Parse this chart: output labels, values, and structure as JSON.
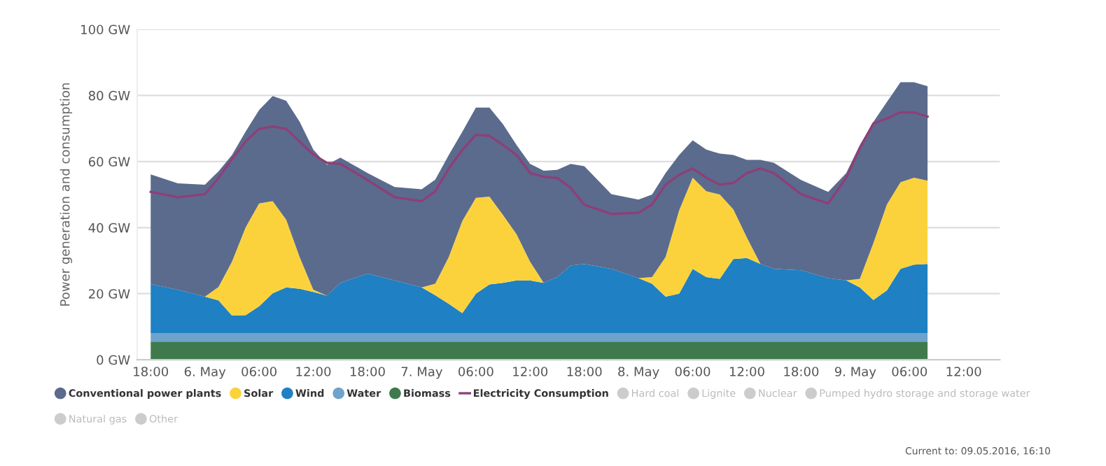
{
  "chart_data": {
    "type": "area",
    "stacked": true,
    "ylabel": "Power generation and consumption",
    "x": [
      "2016-05-05T18:00",
      "2016-05-05T21:00",
      "2016-05-06T00:00",
      "2016-05-06T01:30",
      "2016-05-06T03:00",
      "2016-05-06T04:30",
      "2016-05-06T06:00",
      "2016-05-06T07:30",
      "2016-05-06T09:00",
      "2016-05-06T10:30",
      "2016-05-06T12:00",
      "2016-05-06T13:30",
      "2016-05-06T15:00",
      "2016-05-06T18:00",
      "2016-05-06T21:00",
      "2016-05-07T00:00",
      "2016-05-07T01:30",
      "2016-05-07T03:00",
      "2016-05-07T04:30",
      "2016-05-07T06:00",
      "2016-05-07T07:30",
      "2016-05-07T09:00",
      "2016-05-07T10:30",
      "2016-05-07T12:00",
      "2016-05-07T13:30",
      "2016-05-07T15:00",
      "2016-05-07T16:30",
      "2016-05-07T18:00",
      "2016-05-07T21:00",
      "2016-05-08T00:00",
      "2016-05-08T01:30",
      "2016-05-08T03:00",
      "2016-05-08T04:30",
      "2016-05-08T06:00",
      "2016-05-08T07:30",
      "2016-05-08T09:00",
      "2016-05-08T10:30",
      "2016-05-08T12:00",
      "2016-05-08T13:30",
      "2016-05-08T15:00",
      "2016-05-08T18:00",
      "2016-05-08T21:00",
      "2016-05-08T23:00",
      "2016-05-09T00:30",
      "2016-05-09T02:00",
      "2016-05-09T03:30",
      "2016-05-09T05:00",
      "2016-05-09T06:30",
      "2016-05-09T08:00"
    ],
    "series": [
      {
        "name": "Biomass",
        "color": "#3f7a4c",
        "values": [
          5.5,
          5.5,
          5.5,
          5.5,
          5.5,
          5.5,
          5.5,
          5.5,
          5.5,
          5.5,
          5.5,
          5.5,
          5.5,
          5.5,
          5.5,
          5.5,
          5.5,
          5.5,
          5.5,
          5.5,
          5.5,
          5.5,
          5.5,
          5.5,
          5.5,
          5.5,
          5.5,
          5.5,
          5.5,
          5.5,
          5.5,
          5.5,
          5.5,
          5.5,
          5.5,
          5.5,
          5.5,
          5.5,
          5.5,
          5.5,
          5.5,
          5.5,
          5.5,
          5.5,
          5.5,
          5.5,
          5.5,
          5.5,
          5.5
        ]
      },
      {
        "name": "Water",
        "color": "#6fa3cc",
        "values": [
          2.5,
          2.5,
          2.5,
          2.5,
          2.5,
          2.5,
          2.5,
          2.5,
          2.5,
          2.5,
          2.5,
          2.5,
          2.5,
          2.5,
          2.5,
          2.5,
          2.5,
          2.5,
          2.5,
          2.5,
          2.5,
          2.5,
          2.5,
          2.5,
          2.5,
          2.5,
          2.5,
          2.5,
          2.5,
          2.5,
          2.5,
          2.5,
          2.5,
          2.5,
          2.5,
          2.5,
          2.5,
          2.5,
          2.5,
          2.5,
          2.5,
          2.5,
          2.5,
          2.5,
          2.5,
          2.5,
          2.5,
          2.5,
          2.5
        ]
      },
      {
        "name": "Wind",
        "color": "#1f80c3",
        "values": [
          14.9,
          13.2,
          11.1,
          10,
          5.4,
          5.5,
          8.2,
          12.1,
          13.9,
          13.5,
          12.5,
          11.4,
          15.3,
          18.1,
          16,
          13.9,
          11.5,
          8.9,
          6.1,
          12,
          14.8,
          15.3,
          16,
          16,
          15.3,
          17,
          20.5,
          21,
          19.5,
          16.7,
          15,
          11.1,
          12,
          19.5,
          17,
          16.5,
          22.5,
          22.8,
          21,
          19.5,
          19.1,
          16.7,
          16,
          13.9,
          10.1,
          13,
          19.5,
          20.8,
          21
        ]
      },
      {
        "name": "Solar",
        "color": "#fcd23c",
        "values": [
          0,
          0,
          0,
          4,
          16.3,
          26.5,
          31.1,
          27.9,
          20.5,
          9.5,
          0.7,
          0,
          0,
          0,
          0,
          0,
          3.5,
          14.2,
          27.9,
          29,
          26.6,
          20.5,
          14,
          5.7,
          0,
          0,
          0,
          0,
          0,
          0,
          2,
          12,
          25.2,
          27.6,
          26,
          25.5,
          15,
          6.2,
          0,
          0,
          0,
          0,
          0,
          2.6,
          17.2,
          26,
          26.2,
          26.3,
          25.2
        ]
      },
      {
        "name": "Conventional power plants",
        "color": "#5b6b8d",
        "values": [
          33.2,
          32.2,
          33.9,
          35,
          32.3,
          29,
          28.3,
          31.8,
          36,
          41,
          42.4,
          39.6,
          37.9,
          30.4,
          28.3,
          29.7,
          31.5,
          30.9,
          27,
          27.3,
          26.9,
          27.5,
          27,
          29.6,
          33.9,
          32.5,
          30.8,
          29.6,
          22.6,
          23.8,
          25,
          25.4,
          16.8,
          11.3,
          12.6,
          12.4,
          16.5,
          23.5,
          31.5,
          32.1,
          27.3,
          26.1,
          32.5,
          40.5,
          36.7,
          31,
          30.3,
          28.9,
          28.6
        ]
      },
      {
        "name": "Electricity Consumption",
        "type": "line",
        "color": "#8e3f78",
        "values": [
          50.8,
          49.2,
          50.1,
          55,
          60.7,
          66,
          69.9,
          70.6,
          69.9,
          66,
          62.1,
          59.6,
          59.3,
          54.4,
          49.2,
          48,
          51,
          57.9,
          63.5,
          68.1,
          67.8,
          65,
          62,
          56.5,
          55.4,
          55,
          52,
          46.9,
          44.1,
          44.5,
          47,
          53,
          56,
          57.9,
          55.1,
          53,
          53.5,
          56.5,
          57.9,
          56.5,
          50.1,
          47.3,
          55.1,
          64,
          71.5,
          73,
          74.9,
          74.9,
          73.6
        ]
      },
      {
        "name": "Hard coal",
        "color": "#cccccc",
        "values": [
          null,
          null,
          null,
          null,
          null,
          null,
          null,
          null,
          null,
          null,
          null,
          null,
          null,
          null,
          null,
          null,
          null,
          null,
          null,
          null,
          null,
          null,
          null,
          null,
          null,
          null,
          null,
          null,
          null,
          null,
          null,
          null,
          null,
          null,
          null,
          null,
          null,
          null,
          null,
          null,
          null,
          null,
          null,
          null,
          null,
          null,
          null,
          null,
          null
        ]
      },
      {
        "name": "Lignite",
        "color": "#cccccc",
        "values": [
          null,
          null,
          null,
          null,
          null,
          null,
          null,
          null,
          null,
          null,
          null,
          null,
          null,
          null,
          null,
          null,
          null,
          null,
          null,
          null,
          null,
          null,
          null,
          null,
          null,
          null,
          null,
          null,
          null,
          null,
          null,
          null,
          null,
          null,
          null,
          null,
          null,
          null,
          null,
          null,
          null,
          null,
          null,
          null,
          null,
          null,
          null,
          null,
          null
        ]
      },
      {
        "name": "Nuclear",
        "color": "#cccccc",
        "values": [
          null,
          null,
          null,
          null,
          null,
          null,
          null,
          null,
          null,
          null,
          null,
          null,
          null,
          null,
          null,
          null,
          null,
          null,
          null,
          null,
          null,
          null,
          null,
          null,
          null,
          null,
          null,
          null,
          null,
          null,
          null,
          null,
          null,
          null,
          null,
          null,
          null,
          null,
          null,
          null,
          null,
          null,
          null,
          null,
          null,
          null,
          null,
          null,
          null
        ]
      },
      {
        "name": "Pumped hydro storage and storage water",
        "color": "#cccccc",
        "values": [
          null,
          null,
          null,
          null,
          null,
          null,
          null,
          null,
          null,
          null,
          null,
          null,
          null,
          null,
          null,
          null,
          null,
          null,
          null,
          null,
          null,
          null,
          null,
          null,
          null,
          null,
          null,
          null,
          null,
          null,
          null,
          null,
          null,
          null,
          null,
          null,
          null,
          null,
          null,
          null,
          null,
          null,
          null,
          null,
          null,
          null,
          null,
          null,
          null
        ]
      },
      {
        "name": "Natural gas",
        "color": "#cccccc",
        "values": [
          null,
          null,
          null,
          null,
          null,
          null,
          null,
          null,
          null,
          null,
          null,
          null,
          null,
          null,
          null,
          null,
          null,
          null,
          null,
          null,
          null,
          null,
          null,
          null,
          null,
          null,
          null,
          null,
          null,
          null,
          null,
          null,
          null,
          null,
          null,
          null,
          null,
          null,
          null,
          null,
          null,
          null,
          null,
          null,
          null,
          null,
          null,
          null,
          null
        ]
      },
      {
        "name": "Other",
        "color": "#cccccc",
        "values": [
          null,
          null,
          null,
          null,
          null,
          null,
          null,
          null,
          null,
          null,
          null,
          null,
          null,
          null,
          null,
          null,
          null,
          null,
          null,
          null,
          null,
          null,
          null,
          null,
          null,
          null,
          null,
          null,
          null,
          null,
          null,
          null,
          null,
          null,
          null,
          null,
          null,
          null,
          null,
          null,
          null,
          null,
          null,
          null,
          null,
          null,
          null,
          null,
          null
        ]
      }
    ],
    "xlim": [
      "2016-05-05T16:30",
      "2016-05-09T16:00"
    ],
    "xticks": [
      {
        "value": "2016-05-05T18:00",
        "label": "18:00"
      },
      {
        "value": "2016-05-06T00:00",
        "label": "6. May"
      },
      {
        "value": "2016-05-06T06:00",
        "label": "06:00"
      },
      {
        "value": "2016-05-06T12:00",
        "label": "12:00"
      },
      {
        "value": "2016-05-06T18:00",
        "label": "18:00"
      },
      {
        "value": "2016-05-07T00:00",
        "label": "7. May"
      },
      {
        "value": "2016-05-07T06:00",
        "label": "06:00"
      },
      {
        "value": "2016-05-07T12:00",
        "label": "12:00"
      },
      {
        "value": "2016-05-07T18:00",
        "label": "18:00"
      },
      {
        "value": "2016-05-08T00:00",
        "label": "8. May"
      },
      {
        "value": "2016-05-08T06:00",
        "label": "06:00"
      },
      {
        "value": "2016-05-08T12:00",
        "label": "12:00"
      },
      {
        "value": "2016-05-08T18:00",
        "label": "18:00"
      },
      {
        "value": "2016-05-09T00:00",
        "label": "9. May"
      },
      {
        "value": "2016-05-09T06:00",
        "label": "06:00"
      },
      {
        "value": "2016-05-09T12:00",
        "label": "12:00"
      }
    ],
    "ylim": [
      0,
      100
    ],
    "yticks": [
      {
        "value": 0,
        "label": "0 GW"
      },
      {
        "value": 20,
        "label": "20 GW"
      },
      {
        "value": 40,
        "label": "40 GW"
      },
      {
        "value": 60,
        "label": "60 GW"
      },
      {
        "value": 80,
        "label": "80 GW"
      },
      {
        "value": 100,
        "label": "100 GW"
      }
    ],
    "grid": "y",
    "legend": "bottom",
    "marker": "none",
    "annotations": [
      "Current to: 09.05.2016, 16:10"
    ]
  }
}
